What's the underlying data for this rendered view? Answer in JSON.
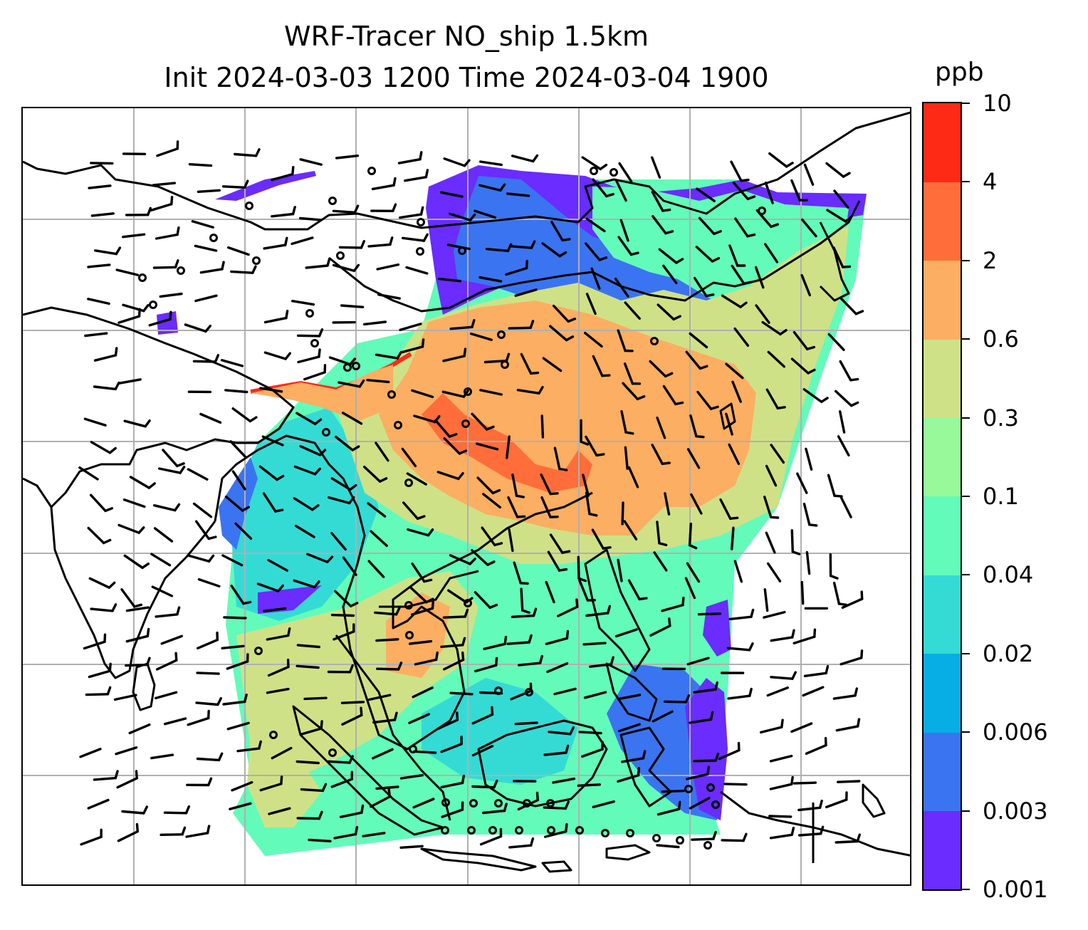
{
  "title": {
    "line1": "WRF-Tracer NO_ship 1.5km",
    "line2": "Init 2024-03-03 1200 Time 2024-03-04 1900"
  },
  "colorbar": {
    "unit": "ppb",
    "levels": [
      "0.001",
      "0.003",
      "0.006",
      "0.02",
      "0.04",
      "0.1",
      "0.3",
      "0.6",
      "2",
      "4",
      "10"
    ],
    "colors": [
      "#6a2cff",
      "#3b74f0",
      "#07aee6",
      "#34dbd5",
      "#63fbb9",
      "#98f99a",
      "#cfe187",
      "#fcae62",
      "#ff6d3a",
      "#ff2a15"
    ]
  },
  "map": {
    "gridlines": true,
    "coastline_color": "#000000",
    "wind_barb_color": "#000000",
    "fill_colors": {
      "lowest": "#6a2cff",
      "low": "#3b74f0",
      "lowmid": "#34dbd5",
      "mid": "#63fbb9",
      "midhigh": "#98f99a",
      "high": "#cfe187",
      "higher": "#fcae62",
      "peak": "#ff6d3a",
      "max": "#ff2a15"
    }
  }
}
